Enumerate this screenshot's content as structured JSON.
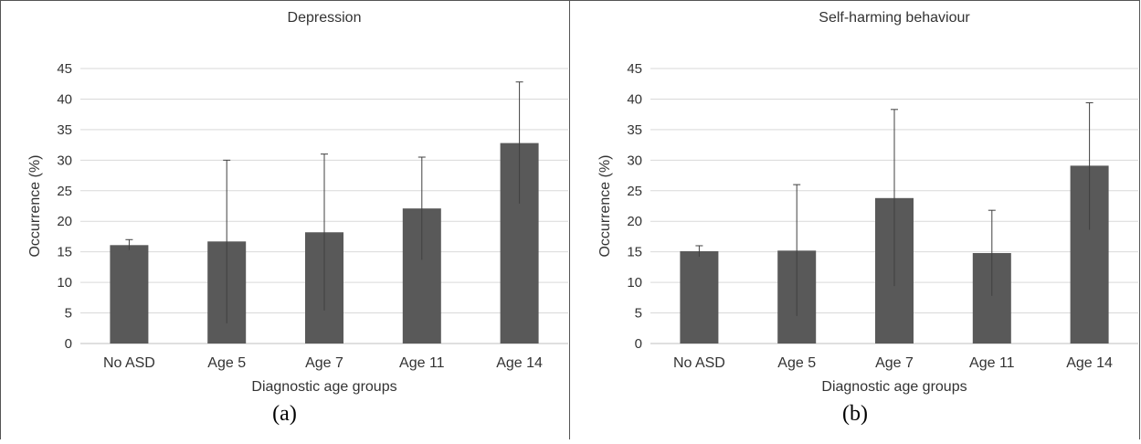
{
  "chart_data": [
    {
      "type": "bar",
      "title": "Depression",
      "xlabel": "Diagnostic age groups",
      "ylabel": "Occurrence (%)",
      "sublabel": "(a)",
      "categories": [
        "No ASD",
        "Age 5",
        "Age 7",
        "Age 11",
        "Age 14"
      ],
      "values": [
        16.1,
        16.7,
        18.2,
        22.1,
        32.8
      ],
      "error_low": [
        15.3,
        3.3,
        5.4,
        13.7,
        22.9
      ],
      "error_high": [
        17.0,
        30.0,
        31.0,
        30.5,
        42.8
      ],
      "ylim": [
        0,
        45
      ],
      "yticks": [
        "0",
        "5",
        "10",
        "15",
        "20",
        "25",
        "30",
        "35",
        "40",
        "45"
      ],
      "grid": true,
      "bar_color": "#595959"
    },
    {
      "type": "bar",
      "title": "Self-harming behaviour",
      "xlabel": "Diagnostic age groups",
      "ylabel": "Occurrence (%)",
      "sublabel": "(b)",
      "categories": [
        "No ASD",
        "Age 5",
        "Age 7",
        "Age 11",
        "Age 14"
      ],
      "values": [
        15.1,
        15.2,
        23.8,
        14.8,
        29.1
      ],
      "error_low": [
        14.2,
        4.5,
        9.4,
        7.8,
        18.6
      ],
      "error_high": [
        16.0,
        26.0,
        38.3,
        21.8,
        39.4
      ],
      "ylim": [
        0,
        45
      ],
      "yticks": [
        "0",
        "5",
        "10",
        "15",
        "20",
        "25",
        "30",
        "35",
        "40",
        "45"
      ],
      "grid": true,
      "bar_color": "#595959"
    }
  ]
}
